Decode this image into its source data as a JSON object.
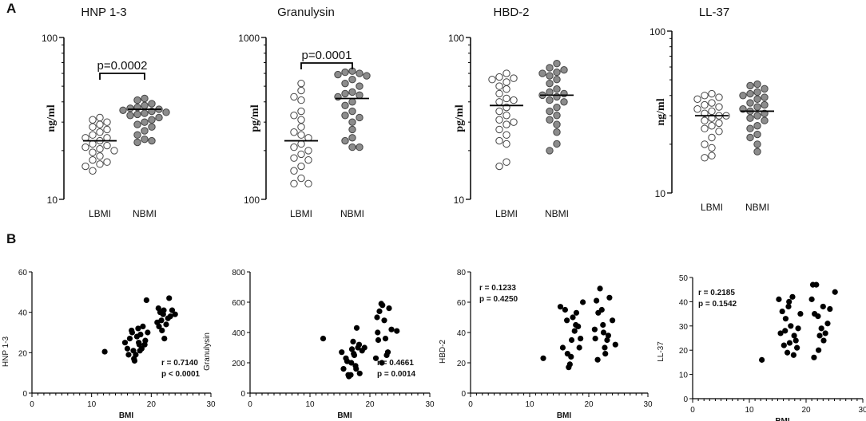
{
  "figure": {
    "panel_a": "A",
    "panel_b": "B"
  },
  "chart_data": [
    {
      "type": "scatter",
      "title": "HNP 1-3",
      "ylabel": "ng/ml",
      "yscale": "log",
      "ylim": [
        10,
        100
      ],
      "yticks": [
        "10",
        "100"
      ],
      "categories": [
        "LBMI",
        "NBMI"
      ],
      "bracket": "p=0.0002",
      "series": [
        {
          "name": "LBMI",
          "fill": "#ffffff",
          "values": [
            32,
            31,
            30,
            29,
            28,
            27,
            26,
            25,
            24,
            24,
            23,
            22,
            21.5,
            21,
            20.5,
            20,
            19.5,
            18.5,
            17.5,
            17,
            16.5,
            16,
            15
          ],
          "median": 23
        },
        {
          "name": "NBMI",
          "fill": "#8c8c8c",
          "values": [
            42,
            41,
            39,
            38,
            37,
            36.5,
            36,
            35.5,
            35,
            34.5,
            34,
            33.5,
            33,
            32,
            31,
            30,
            29,
            28,
            26.5,
            25,
            23.5,
            23,
            22.5
          ],
          "median": 36
        }
      ]
    },
    {
      "type": "scatter",
      "title": "Granulysin",
      "ylabel": "pg/ml",
      "yscale": "log",
      "ylim": [
        100,
        1000
      ],
      "yticks": [
        "100",
        "1000"
      ],
      "categories": [
        "LBMI",
        "NBMI"
      ],
      "bracket": "p=0.0001",
      "series": [
        {
          "name": "LBMI",
          "fill": "#ffffff",
          "values": [
            520,
            470,
            430,
            410,
            350,
            330,
            310,
            280,
            260,
            250,
            240,
            220,
            210,
            200,
            190,
            180,
            175,
            160,
            150,
            135,
            125,
            125
          ],
          "median": 230
        },
        {
          "name": "NBMI",
          "fill": "#8c8c8c",
          "values": [
            620,
            610,
            600,
            590,
            580,
            550,
            520,
            500,
            460,
            450,
            440,
            430,
            400,
            380,
            350,
            330,
            320,
            300,
            270,
            240,
            230,
            210,
            210
          ],
          "median": 420
        }
      ]
    },
    {
      "type": "scatter",
      "title": "HBD-2",
      "ylabel": "pg/ml",
      "yscale": "log",
      "ylim": [
        10,
        100
      ],
      "yticks": [
        "10",
        "100"
      ],
      "categories": [
        "LBMI",
        "NBMI"
      ],
      "bracket": "",
      "series": [
        {
          "name": "LBMI",
          "fill": "#ffffff",
          "values": [
            60,
            57,
            56,
            55,
            53,
            50,
            48,
            45,
            42,
            41,
            40,
            37,
            35,
            33,
            31,
            30,
            29,
            27,
            25,
            23,
            22,
            17,
            16
          ],
          "median": 38
        },
        {
          "name": "NBMI",
          "fill": "#8c8c8c",
          "values": [
            69,
            65,
            63,
            61,
            60,
            58,
            55,
            52,
            48,
            46,
            45,
            44,
            43,
            41,
            40,
            37,
            35,
            33,
            31,
            29,
            26,
            22,
            20
          ],
          "median": 44
        }
      ]
    },
    {
      "type": "scatter",
      "title": "LL-37",
      "ylabel": "ng/ml",
      "yscale": "log",
      "ylim": [
        10,
        100
      ],
      "yticks": [
        "10",
        "100"
      ],
      "categories": [
        "LBMI",
        "NBMI"
      ],
      "bracket": "",
      "series": [
        {
          "name": "LBMI",
          "fill": "#ffffff",
          "values": [
            41,
            40,
            39,
            38,
            36,
            35,
            34,
            33,
            32,
            31,
            30,
            30,
            29,
            28,
            27,
            26,
            25,
            24,
            22,
            20,
            19,
            17,
            16.5
          ],
          "median": 30
        },
        {
          "name": "NBMI",
          "fill": "#8c8c8c",
          "values": [
            47,
            46,
            44,
            42,
            41,
            40,
            39,
            38,
            36,
            35,
            34,
            33,
            32,
            31,
            30,
            29,
            28,
            26,
            25,
            23,
            22,
            20,
            18
          ],
          "median": 32
        }
      ]
    },
    {
      "type": "scatter",
      "xlabel": "BMI",
      "ylabel": "HNP 1-3",
      "xlim": [
        0,
        30
      ],
      "ylim": [
        0,
        60
      ],
      "xticks": [
        "0",
        "10",
        "20",
        "30"
      ],
      "yticks": [
        "0",
        "20",
        "40",
        "60"
      ],
      "stat_r": "r = 0.7140",
      "stat_p": "p < 0.0001",
      "x": [
        12.2,
        15.6,
        16.0,
        16.4,
        16.8,
        17.0,
        17.2,
        17.4,
        17.6,
        17.8,
        18.0,
        18.2,
        18.4,
        18.6,
        19.0,
        19.4,
        16.2,
        17.1,
        18.1,
        17.9,
        16.7,
        21.0,
        21.3,
        21.5,
        21.7,
        22.0,
        22.2,
        22.5,
        23.0,
        23.5,
        24.0,
        21.2,
        22.8,
        21.8,
        23.2,
        22.1,
        19.2,
        18.9
      ],
      "y": [
        20.5,
        25,
        22,
        27,
        30,
        21,
        16,
        19,
        28,
        32,
        24,
        29,
        22,
        33,
        26,
        30,
        19,
        17,
        21,
        25,
        31,
        35,
        33,
        40,
        36,
        39,
        27,
        34,
        47,
        41,
        39,
        42,
        37,
        31,
        38,
        41,
        46,
        24
      ]
    },
    {
      "type": "scatter",
      "xlabel": "BMI",
      "ylabel": "Granulysin",
      "xlim": [
        0,
        30
      ],
      "ylim": [
        0,
        800
      ],
      "xticks": [
        "0",
        "10",
        "20",
        "30"
      ],
      "yticks": [
        "0",
        "200",
        "400",
        "600",
        "800"
      ],
      "stat_r": "r = 0.4661",
      "stat_p": "p = 0.0014",
      "x": [
        12.2,
        15.3,
        15.6,
        16.0,
        16.2,
        16.5,
        16.8,
        17.0,
        17.2,
        17.4,
        17.6,
        17.8,
        18.0,
        18.3,
        18.7,
        19.1,
        16.4,
        17.3,
        18.2,
        16.9,
        17.7,
        21.0,
        21.3,
        21.6,
        21.9,
        22.1,
        22.4,
        22.8,
        23.2,
        23.6,
        24.5,
        21.4,
        22.0,
        22.6,
        21.2,
        23.0
      ],
      "y": [
        360,
        270,
        160,
        230,
        210,
        110,
        120,
        290,
        340,
        250,
        180,
        430,
        300,
        130,
        280,
        300,
        120,
        260,
        320,
        200,
        160,
        230,
        400,
        540,
        590,
        580,
        480,
        250,
        560,
        420,
        410,
        350,
        200,
        360,
        500,
        270
      ]
    },
    {
      "type": "scatter",
      "xlabel": "BMI",
      "ylabel": "HBD-2",
      "xlim": [
        0,
        30
      ],
      "ylim": [
        0,
        80
      ],
      "xticks": [
        "0",
        "10",
        "20",
        "30"
      ],
      "yticks": [
        "0",
        "20",
        "40",
        "60",
        "80"
      ],
      "stat_r": "r = 0.1233",
      "stat_p": "p = 0.4250",
      "x": [
        12.3,
        15.2,
        15.6,
        16.0,
        16.3,
        16.6,
        17.0,
        17.3,
        17.6,
        17.9,
        18.2,
        18.6,
        19.0,
        16.4,
        17.1,
        17.8,
        16.8,
        18.4,
        21.0,
        21.3,
        21.6,
        21.9,
        22.2,
        22.5,
        22.8,
        23.1,
        23.5,
        24.0,
        24.5,
        21.5,
        22.4,
        23.3,
        21.1,
        22.7
      ],
      "y": [
        23,
        57,
        30,
        55,
        48,
        17,
        24,
        50,
        41,
        53,
        44,
        36,
        60,
        26,
        35,
        45,
        19,
        30,
        42,
        61,
        53,
        69,
        55,
        40,
        26,
        35,
        63,
        48,
        32,
        22,
        45,
        38,
        36,
        30
      ]
    },
    {
      "type": "scatter",
      "xlabel": "BMI",
      "ylabel": "LL-37",
      "xlim": [
        0,
        30
      ],
      "ylim": [
        0,
        50
      ],
      "xticks": [
        "0",
        "10",
        "20",
        "30"
      ],
      "yticks": [
        "0",
        "10",
        "20",
        "30",
        "40",
        "50"
      ],
      "stat_r": "r = 0.2185",
      "stat_p": "p = 0.1542",
      "x": [
        12.2,
        15.2,
        15.5,
        15.8,
        16.1,
        16.4,
        16.7,
        17.0,
        17.3,
        17.6,
        17.9,
        18.2,
        18.6,
        19.0,
        16.3,
        17.1,
        17.8,
        16.9,
        18.4,
        21.0,
        21.2,
        21.5,
        21.8,
        22.1,
        22.4,
        22.7,
        23.0,
        23.4,
        23.8,
        24.2,
        25.1,
        21.4,
        22.2,
        23.1
      ],
      "y": [
        16,
        41,
        27,
        36,
        22,
        33,
        19,
        40,
        30,
        42,
        26,
        24,
        29,
        35,
        28,
        23,
        18,
        38,
        21,
        41,
        47,
        35,
        47,
        34,
        26,
        29,
        38,
        27,
        31,
        37,
        44,
        17,
        20,
        24
      ]
    }
  ]
}
